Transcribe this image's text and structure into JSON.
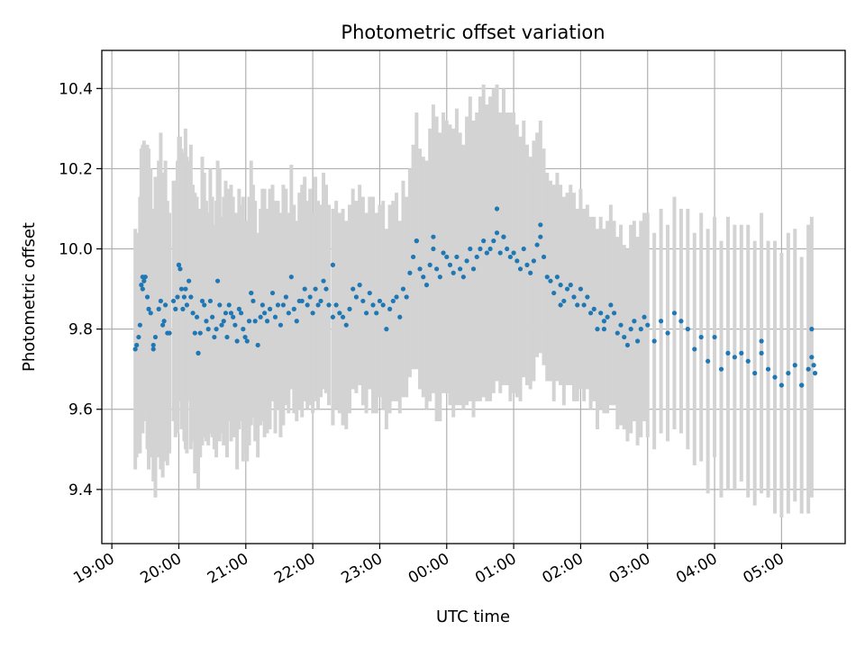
{
  "chart_data": {
    "type": "scatter",
    "title": "Photometric offset variation",
    "xlabel": "UTC time",
    "ylabel": "Photometric offset",
    "x_unit": "hours since 19:00 UTC",
    "xlim": [
      -0.15,
      10.95
    ],
    "ylim": [
      9.265,
      10.495
    ],
    "xticks": [
      {
        "value": 0,
        "label": "19:00"
      },
      {
        "value": 1,
        "label": "20:00"
      },
      {
        "value": 2,
        "label": "21:00"
      },
      {
        "value": 3,
        "label": "22:00"
      },
      {
        "value": 4,
        "label": "23:00"
      },
      {
        "value": 5,
        "label": "00:00"
      },
      {
        "value": 6,
        "label": "01:00"
      },
      {
        "value": 7,
        "label": "02:00"
      },
      {
        "value": 8,
        "label": "03:00"
      },
      {
        "value": 9,
        "label": "04:00"
      },
      {
        "value": 10,
        "label": "05:00"
      }
    ],
    "yticks": [
      {
        "value": 9.4,
        "label": "9.4"
      },
      {
        "value": 9.6,
        "label": "9.6"
      },
      {
        "value": 9.8,
        "label": "9.8"
      },
      {
        "value": 10.0,
        "label": "10.0"
      },
      {
        "value": 10.2,
        "label": "10.2"
      },
      {
        "value": 10.4,
        "label": "10.4"
      }
    ],
    "grid": true,
    "point_color": "#1f77b4",
    "errorbar_color": "#d3d3d3",
    "series": [
      {
        "name": "offset",
        "note": "columns: [time_hours, offset, error]",
        "points": [
          [
            0.35,
            9.75,
            0.3
          ],
          [
            0.37,
            9.76,
            0.28
          ],
          [
            0.4,
            9.78,
            0.25
          ],
          [
            0.42,
            9.81,
            0.32
          ],
          [
            0.44,
            9.91,
            0.34
          ],
          [
            0.46,
            9.9,
            0.36
          ],
          [
            0.48,
            9.92,
            0.35
          ],
          [
            0.5,
            9.93,
            0.33
          ],
          [
            0.53,
            9.88,
            0.38
          ],
          [
            0.55,
            9.85,
            0.4
          ],
          [
            0.58,
            9.84,
            0.36
          ],
          [
            0.62,
            9.76,
            0.34
          ],
          [
            0.65,
            9.78,
            0.4
          ],
          [
            0.7,
            9.85,
            0.37
          ],
          [
            0.73,
            9.87,
            0.42
          ],
          [
            0.76,
            9.81,
            0.38
          ],
          [
            0.78,
            9.82,
            0.35
          ],
          [
            0.8,
            9.86,
            0.36
          ],
          [
            0.83,
            9.79,
            0.33
          ],
          [
            0.86,
            9.79,
            0.3
          ],
          [
            0.92,
            9.87,
            0.3
          ],
          [
            0.95,
            9.85,
            0.32
          ],
          [
            0.98,
            9.88,
            0.34
          ],
          [
            1.0,
            9.96,
            0.32
          ],
          [
            1.02,
            9.95,
            0.33
          ],
          [
            1.04,
            9.9,
            0.35
          ],
          [
            1.06,
            9.85,
            0.3
          ],
          [
            1.08,
            9.88,
            0.36
          ],
          [
            1.1,
            9.9,
            0.4
          ],
          [
            1.12,
            9.86,
            0.37
          ],
          [
            1.15,
            9.92,
            0.3
          ],
          [
            1.18,
            9.88,
            0.38
          ],
          [
            1.21,
            9.84,
            0.32
          ],
          [
            1.24,
            9.79,
            0.35
          ],
          [
            1.27,
            9.83,
            0.3
          ],
          [
            1.29,
            9.74,
            0.34
          ],
          [
            1.32,
            9.79,
            0.31
          ],
          [
            1.35,
            9.87,
            0.36
          ],
          [
            1.38,
            9.86,
            0.33
          ],
          [
            1.41,
            9.82,
            0.3
          ],
          [
            1.44,
            9.8,
            0.29
          ],
          [
            1.47,
            9.87,
            0.33
          ],
          [
            1.5,
            9.83,
            0.3
          ],
          [
            1.53,
            9.78,
            0.28
          ],
          [
            1.56,
            9.8,
            0.32
          ],
          [
            1.58,
            9.92,
            0.3
          ],
          [
            1.61,
            9.86,
            0.34
          ],
          [
            1.64,
            9.81,
            0.27
          ],
          [
            1.67,
            9.82,
            0.31
          ],
          [
            1.7,
            9.84,
            0.33
          ],
          [
            1.72,
            9.78,
            0.3
          ],
          [
            1.75,
            9.86,
            0.29
          ],
          [
            1.78,
            9.84,
            0.32
          ],
          [
            1.81,
            9.83,
            0.3
          ],
          [
            1.84,
            9.81,
            0.28
          ],
          [
            1.87,
            9.77,
            0.32
          ],
          [
            1.9,
            9.85,
            0.3
          ],
          [
            1.93,
            9.84,
            0.27
          ],
          [
            1.96,
            9.8,
            0.33
          ],
          [
            1.99,
            9.78,
            0.29
          ],
          [
            2.02,
            9.77,
            0.3
          ],
          [
            2.05,
            9.82,
            0.31
          ],
          [
            2.08,
            9.89,
            0.33
          ],
          [
            2.11,
            9.87,
            0.29
          ],
          [
            2.14,
            9.82,
            0.3
          ],
          [
            2.18,
            9.76,
            0.28
          ],
          [
            2.22,
            9.83,
            0.27
          ],
          [
            2.25,
            9.86,
            0.29
          ],
          [
            2.28,
            9.84,
            0.31
          ],
          [
            2.32,
            9.82,
            0.28
          ],
          [
            2.36,
            9.85,
            0.3
          ],
          [
            2.4,
            9.89,
            0.27
          ],
          [
            2.44,
            9.83,
            0.29
          ],
          [
            2.48,
            9.86,
            0.26
          ],
          [
            2.52,
            9.81,
            0.28
          ],
          [
            2.56,
            9.86,
            0.3
          ],
          [
            2.6,
            9.88,
            0.27
          ],
          [
            2.64,
            9.84,
            0.25
          ],
          [
            2.68,
            9.93,
            0.28
          ],
          [
            2.72,
            9.85,
            0.26
          ],
          [
            2.76,
            9.82,
            0.25
          ],
          [
            2.8,
            9.87,
            0.27
          ],
          [
            2.84,
            9.87,
            0.29
          ],
          [
            2.88,
            9.9,
            0.28
          ],
          [
            2.92,
            9.86,
            0.26
          ],
          [
            2.96,
            9.88,
            0.27
          ],
          [
            3.0,
            9.84,
            0.25
          ],
          [
            3.04,
            9.9,
            0.28
          ],
          [
            3.08,
            9.86,
            0.26
          ],
          [
            3.12,
            9.87,
            0.24
          ],
          [
            3.16,
            9.92,
            0.27
          ],
          [
            3.2,
            9.9,
            0.26
          ],
          [
            3.24,
            9.86,
            0.25
          ],
          [
            3.3,
            9.83,
            0.27
          ],
          [
            3.35,
            9.86,
            0.26
          ],
          [
            3.4,
            9.84,
            0.25
          ],
          [
            3.45,
            9.83,
            0.27
          ],
          [
            3.5,
            9.81,
            0.26
          ],
          [
            3.55,
            9.85,
            0.26
          ],
          [
            3.6,
            9.9,
            0.25
          ],
          [
            3.65,
            9.88,
            0.24
          ],
          [
            3.7,
            9.91,
            0.25
          ],
          [
            3.75,
            9.87,
            0.26
          ],
          [
            3.8,
            9.84,
            0.25
          ],
          [
            3.85,
            9.89,
            0.24
          ],
          [
            3.9,
            9.86,
            0.27
          ],
          [
            3.95,
            9.84,
            0.25
          ],
          [
            4.0,
            9.87,
            0.24
          ],
          [
            4.05,
            9.86,
            0.26
          ],
          [
            4.1,
            9.8,
            0.25
          ],
          [
            4.15,
            9.85,
            0.26
          ],
          [
            4.2,
            9.87,
            0.25
          ],
          [
            4.25,
            9.88,
            0.26
          ],
          [
            4.3,
            9.83,
            0.24
          ],
          [
            4.35,
            9.9,
            0.27
          ],
          [
            4.4,
            9.88,
            0.25
          ],
          [
            4.45,
            9.94,
            0.26
          ],
          [
            4.5,
            9.98,
            0.28
          ],
          [
            4.55,
            10.02,
            0.32
          ],
          [
            4.6,
            9.95,
            0.3
          ],
          [
            4.65,
            9.93,
            0.3
          ],
          [
            4.7,
            9.91,
            0.31
          ],
          [
            4.75,
            9.96,
            0.34
          ],
          [
            4.8,
            10.0,
            0.36
          ],
          [
            4.85,
            9.95,
            0.38
          ],
          [
            4.9,
            9.93,
            0.36
          ],
          [
            4.95,
            9.99,
            0.35
          ],
          [
            5.0,
            9.98,
            0.34
          ],
          [
            5.05,
            9.96,
            0.35
          ],
          [
            5.1,
            9.94,
            0.36
          ],
          [
            5.15,
            9.98,
            0.37
          ],
          [
            5.2,
            9.95,
            0.34
          ],
          [
            5.25,
            9.93,
            0.33
          ],
          [
            5.3,
            9.97,
            0.36
          ],
          [
            5.35,
            10.0,
            0.38
          ],
          [
            5.4,
            9.95,
            0.37
          ],
          [
            5.45,
            9.98,
            0.36
          ],
          [
            5.5,
            10.0,
            0.38
          ],
          [
            5.55,
            10.02,
            0.39
          ],
          [
            5.6,
            9.99,
            0.37
          ],
          [
            5.65,
            10.0,
            0.38
          ],
          [
            5.7,
            10.02,
            0.38
          ],
          [
            5.75,
            10.04,
            0.37
          ],
          [
            5.8,
            9.99,
            0.35
          ],
          [
            5.85,
            10.03,
            0.37
          ],
          [
            5.9,
            10.0,
            0.34
          ],
          [
            5.95,
            9.98,
            0.36
          ],
          [
            6.0,
            9.99,
            0.35
          ],
          [
            6.05,
            9.97,
            0.34
          ],
          [
            6.1,
            9.95,
            0.33
          ],
          [
            6.15,
            10.0,
            0.32
          ],
          [
            6.2,
            9.96,
            0.3
          ],
          [
            6.25,
            9.94,
            0.29
          ],
          [
            6.3,
            9.97,
            0.3
          ],
          [
            6.35,
            10.01,
            0.28
          ],
          [
            6.4,
            10.03,
            0.29
          ],
          [
            6.45,
            9.98,
            0.27
          ],
          [
            6.5,
            9.93,
            0.26
          ],
          [
            6.55,
            9.92,
            0.25
          ],
          [
            6.6,
            9.89,
            0.27
          ],
          [
            6.65,
            9.93,
            0.26
          ],
          [
            6.7,
            9.91,
            0.25
          ],
          [
            6.75,
            9.87,
            0.26
          ],
          [
            6.8,
            9.9,
            0.24
          ],
          [
            6.85,
            9.91,
            0.25
          ],
          [
            6.9,
            9.88,
            0.26
          ],
          [
            6.95,
            9.86,
            0.24
          ],
          [
            7.0,
            9.9,
            0.25
          ],
          [
            7.05,
            9.86,
            0.24
          ],
          [
            7.1,
            9.88,
            0.23
          ],
          [
            7.15,
            9.84,
            0.24
          ],
          [
            7.2,
            9.85,
            0.23
          ],
          [
            7.25,
            9.8,
            0.25
          ],
          [
            7.3,
            9.84,
            0.24
          ],
          [
            7.35,
            9.82,
            0.23
          ],
          [
            7.4,
            9.83,
            0.24
          ],
          [
            7.45,
            9.86,
            0.25
          ],
          [
            7.5,
            9.84,
            0.23
          ],
          [
            7.55,
            9.79,
            0.24
          ],
          [
            7.6,
            9.81,
            0.25
          ],
          [
            7.65,
            9.78,
            0.23
          ],
          [
            7.7,
            9.76,
            0.24
          ],
          [
            7.75,
            9.8,
            0.26
          ],
          [
            7.8,
            9.82,
            0.25
          ],
          [
            7.85,
            9.77,
            0.26
          ],
          [
            7.9,
            9.8,
            0.27
          ],
          [
            7.95,
            9.83,
            0.26
          ],
          [
            8.0,
            9.81,
            0.28
          ],
          [
            8.1,
            9.77,
            0.27
          ],
          [
            8.2,
            9.82,
            0.28
          ],
          [
            8.3,
            9.79,
            0.27
          ],
          [
            8.4,
            9.84,
            0.29
          ],
          [
            8.5,
            9.82,
            0.28
          ],
          [
            8.6,
            9.8,
            0.3
          ],
          [
            8.7,
            9.75,
            0.29
          ],
          [
            8.8,
            9.78,
            0.31
          ],
          [
            8.9,
            9.72,
            0.33
          ],
          [
            9.0,
            9.78,
            0.3
          ],
          [
            9.1,
            9.7,
            0.32
          ],
          [
            9.2,
            9.74,
            0.34
          ],
          [
            9.3,
            9.73,
            0.33
          ],
          [
            9.4,
            9.74,
            0.32
          ],
          [
            9.5,
            9.72,
            0.34
          ],
          [
            9.6,
            9.69,
            0.33
          ],
          [
            9.7,
            9.74,
            0.35
          ],
          [
            9.8,
            9.7,
            0.32
          ],
          [
            9.9,
            9.68,
            0.34
          ],
          [
            10.0,
            9.66,
            0.33
          ],
          [
            10.1,
            9.69,
            0.35
          ],
          [
            10.2,
            9.71,
            0.34
          ],
          [
            10.3,
            9.66,
            0.32
          ],
          [
            10.4,
            9.7,
            0.36
          ],
          [
            10.45,
            9.73,
            0.35
          ]
        ]
      }
    ],
    "highlight_points": [
      [
        0.46,
        9.93
      ],
      [
        0.62,
        9.75
      ],
      [
        1.0,
        9.96
      ],
      [
        1.29,
        9.74
      ],
      [
        2.08,
        9.89
      ],
      [
        3.3,
        9.96
      ],
      [
        4.55,
        10.02
      ],
      [
        4.8,
        10.03
      ],
      [
        5.75,
        10.1
      ],
      [
        5.85,
        10.03
      ],
      [
        6.4,
        10.06
      ],
      [
        6.7,
        9.86
      ],
      [
        7.35,
        9.8
      ],
      [
        9.7,
        9.77
      ],
      [
        10.3,
        9.66
      ],
      [
        10.45,
        9.8
      ],
      [
        10.48,
        9.71
      ],
      [
        10.5,
        9.69
      ]
    ]
  }
}
